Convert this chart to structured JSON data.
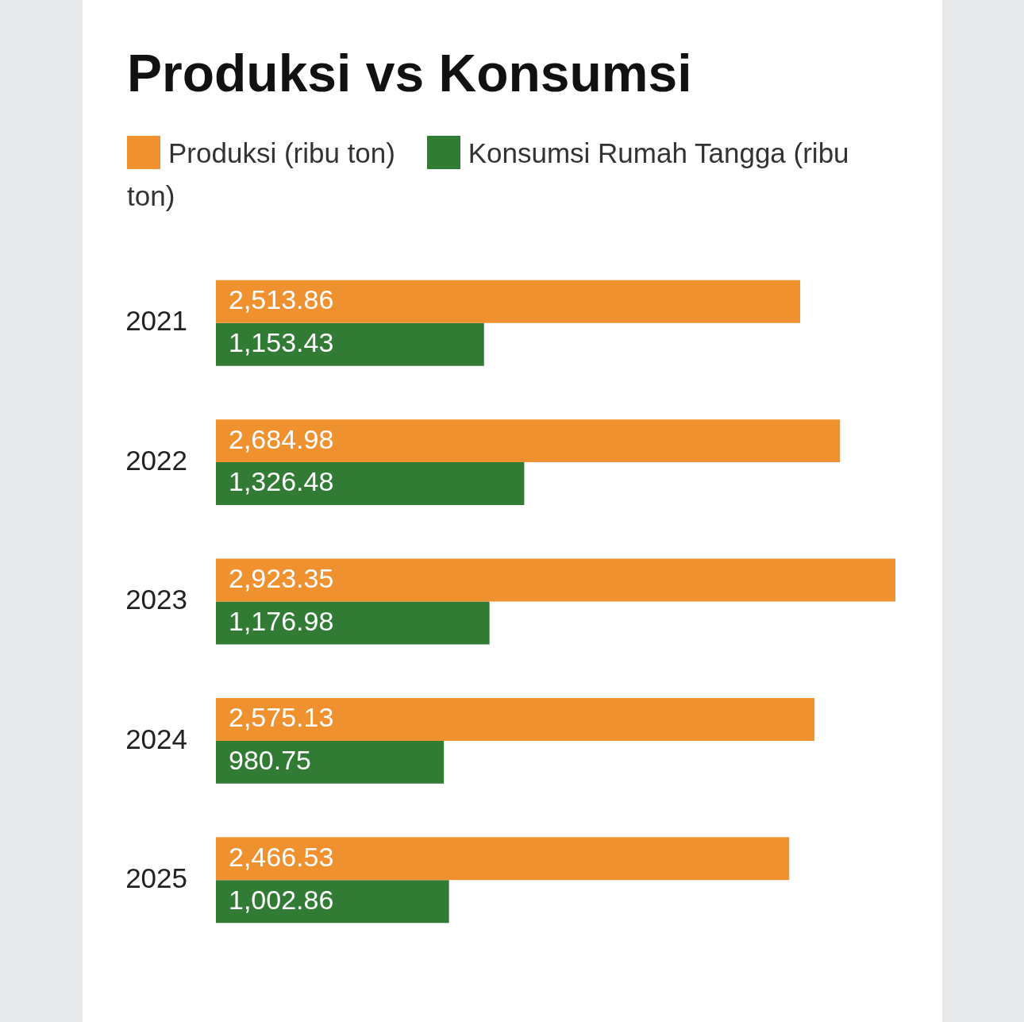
{
  "chart_data": {
    "type": "bar",
    "orientation": "horizontal",
    "title": "Produksi vs Konsumsi",
    "categories": [
      "2021",
      "2022",
      "2023",
      "2024",
      "2025"
    ],
    "series": [
      {
        "name": "Produksi (ribu ton)",
        "color": "#f0912f",
        "values": [
          2513.86,
          2684.98,
          2923.35,
          2575.13,
          2466.53
        ],
        "value_labels": [
          "2,513.86",
          "2,684.98",
          "2,923.35",
          "2,575.13",
          "2,466.53"
        ]
      },
      {
        "name": "Konsumsi Rumah Tangga (ribu ton)",
        "color": "#317b35",
        "values": [
          1153.43,
          1326.48,
          1176.98,
          980.75,
          1002.86
        ],
        "value_labels": [
          "1,153.43",
          "1,326.48",
          "1,176.98",
          "980.75",
          "1,002.86"
        ]
      }
    ],
    "legend": "top",
    "tick_labels": "y"
  }
}
